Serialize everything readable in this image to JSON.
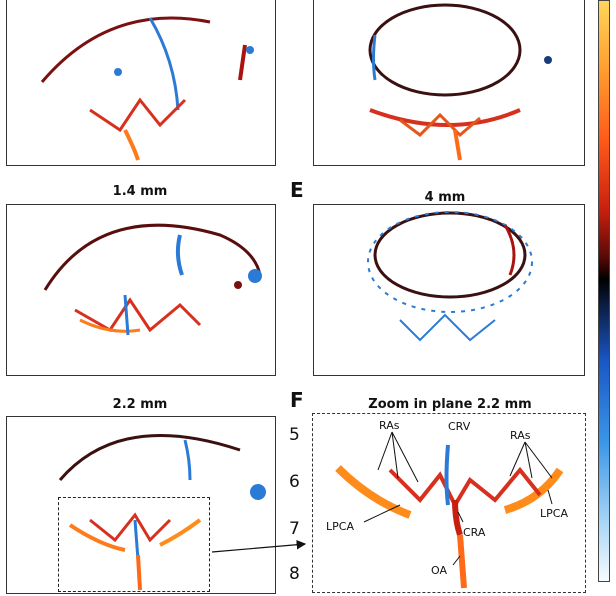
{
  "panels": {
    "A": {
      "title": "",
      "letter": ""
    },
    "B": {
      "title": "",
      "letter": ""
    },
    "C": {
      "title": "1.4 mm",
      "letter": ""
    },
    "D": {
      "title": "2.2 mm",
      "letter": ""
    },
    "E": {
      "title": "4 mm",
      "letter": "E"
    },
    "F": {
      "title": "Zoom in plane 2.2 mm",
      "letter": "F"
    }
  },
  "zoom_axis": {
    "ticks": [
      "5",
      "6",
      "7",
      "8"
    ]
  },
  "annotations": {
    "ras_left": "RAs",
    "ras_right": "RAs",
    "crv": "CRV",
    "lpca_left": "LPCA",
    "lpca_right": "LPCA",
    "cra": "CRA",
    "oa": "OA"
  },
  "colors": {
    "arterial": "#d7301f",
    "venous": "#2b7bd6",
    "bright": "#ff8c1a"
  }
}
